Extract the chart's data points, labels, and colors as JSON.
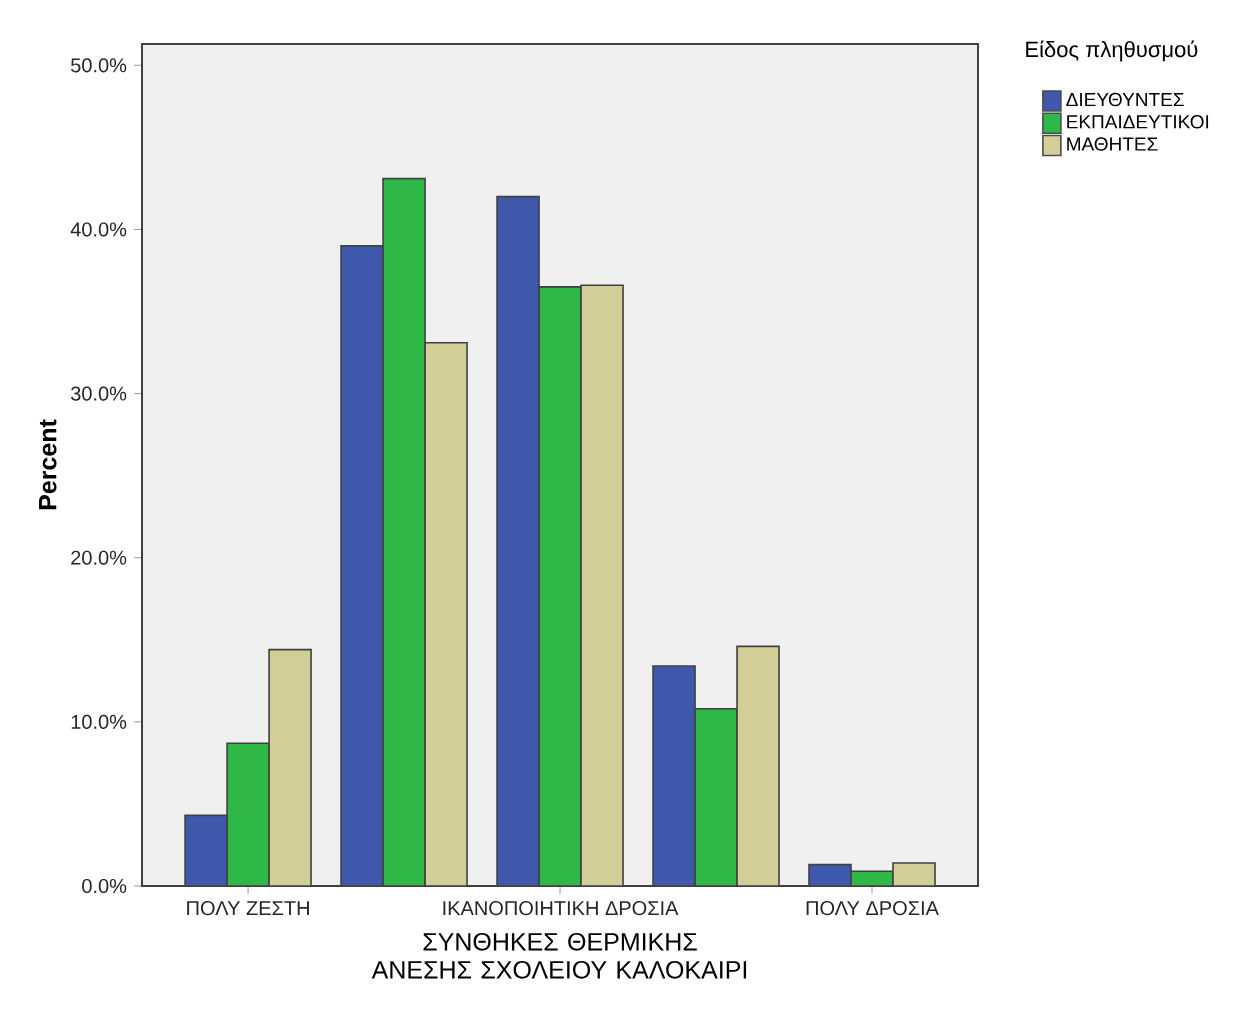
{
  "chart_data": {
    "type": "bar",
    "xlabel": "ΣΥΝΘΗΚΕΣ ΘΕΡΜΙΚΗΣ ΑΝΕΣΗΣ ΣΧΟΛΕΙΟΥ  ΚΑΛΟΚΑΙΡΙ",
    "ylabel": "Percent",
    "legend_title": "Είδος πληθυσμού",
    "categories": [
      "ΠΟΛΥ ΖΕΣΤΗ",
      null,
      "ΙΚΑΝΟΠΟΙΗΤΙΚΗ ΔΡΟΣΙΑ",
      null,
      "ΠΟΛΥ ΔΡΟΣΙΑ"
    ],
    "series": [
      {
        "name": "ΔΙΕΥΘΥΝΤΕΣ",
        "color": "#3e58ac",
        "values": [
          4.3,
          39.0,
          42.0,
          13.4,
          1.3
        ]
      },
      {
        "name": "ΕΚΠΑΙΔΕΥΤΙΚΟΙ",
        "color": "#2eb848",
        "values": [
          8.7,
          43.1,
          36.5,
          10.8,
          0.9
        ]
      },
      {
        "name": "ΜΑΘΗΤΕΣ",
        "color": "#d3ce97",
        "values": [
          14.4,
          33.1,
          36.6,
          14.6,
          1.4
        ]
      }
    ],
    "ylim": [
      0,
      51.3
    ],
    "yticks": [
      {
        "value": 0,
        "label": "0.0%"
      },
      {
        "value": 10,
        "label": "10.0%"
      },
      {
        "value": 20,
        "label": "20.0%"
      },
      {
        "value": 30,
        "label": "30.0%"
      },
      {
        "value": 40,
        "label": "40.0%"
      },
      {
        "value": 50,
        "label": "50.0%"
      }
    ],
    "grid": false,
    "legend": "top right"
  }
}
